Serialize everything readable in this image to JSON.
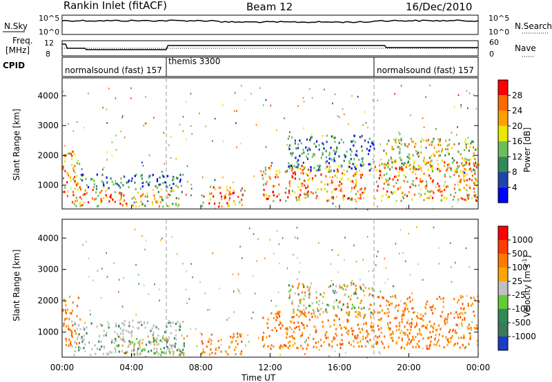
{
  "header": {
    "station": "Rankin Inlet (fitACF)",
    "beam": "Beam 12",
    "date": "16/Dec/2010"
  },
  "top_panels": {
    "nsky_label": "N.Sky",
    "nsky_ticks": [
      "10^5",
      "10^0"
    ],
    "nsearch_label": "N.Search",
    "nsearch_ticks": [
      "10^5",
      "10^0"
    ],
    "freq_label_1": "Freq.",
    "freq_label_2": "[MHz]",
    "freq_ticks": [
      "12",
      "8"
    ],
    "nave_label": "Nave",
    "nave_ticks": [
      "60",
      "0"
    ],
    "cpid_label": "CPID",
    "cpid_segments": [
      {
        "name": "normalsound (fast) 157",
        "start_h": 0,
        "end_h": 6
      },
      {
        "name": "themis 3300",
        "start_h": 6,
        "end_h": 18
      },
      {
        "name": "normalsound (fast) 157",
        "start_h": 18,
        "end_h": 24
      }
    ]
  },
  "colors": {
    "power_scale": [
      "#0000ff",
      "#1e46aa",
      "#2e8b57",
      "#6bbf59",
      "#e8e800",
      "#ffa000",
      "#ff6a00",
      "#ff0000"
    ],
    "velocity_scale": [
      "#1a3cc8",
      "#3a7a5a",
      "#2e8b57",
      "#66cc33",
      "#c0c0c0",
      "#ffa500",
      "#ff7800",
      "#ff3c00",
      "#ff0000"
    ]
  },
  "chart_data": [
    {
      "type": "heatmap",
      "name": "Power",
      "xlabel": "",
      "ylabel": "Slant Range [km]",
      "x_ticks": [
        "00:00",
        "04:00",
        "08:00",
        "12:00",
        "16:00",
        "20:00",
        "00:00"
      ],
      "xlim_hours": [
        0,
        24
      ],
      "ylim_km": [
        200,
        4600
      ],
      "y_ticks": [
        1000,
        2000,
        3000,
        4000
      ],
      "colorbar_label": "Power [dB]",
      "colorbar_ticks": [
        "28",
        "24",
        "20",
        "16",
        "12",
        "8",
        "4"
      ],
      "colorbar_range": [
        0,
        32
      ],
      "regions": [
        {
          "t0": 0,
          "t1": 1,
          "r0": 600,
          "r1": 2200,
          "level": "high"
        },
        {
          "t0": 0.5,
          "t1": 4,
          "r0": 300,
          "r1": 900,
          "level": "high"
        },
        {
          "t0": 1,
          "t1": 7,
          "r0": 900,
          "r1": 1400,
          "level": "low"
        },
        {
          "t0": 4,
          "t1": 7,
          "r0": 300,
          "r1": 900,
          "level": "mid"
        },
        {
          "t0": 8,
          "t1": 10.5,
          "r0": 300,
          "r1": 1000,
          "level": "high"
        },
        {
          "t0": 11.5,
          "t1": 17.5,
          "r0": 500,
          "r1": 1700,
          "level": "high"
        },
        {
          "t0": 13,
          "t1": 18,
          "r0": 1500,
          "r1": 2700,
          "level": "low"
        },
        {
          "t0": 18,
          "t1": 24,
          "r0": 500,
          "r1": 1800,
          "level": "high"
        },
        {
          "t0": 18.5,
          "t1": 24,
          "r0": 1500,
          "r1": 2600,
          "level": "mid"
        }
      ]
    },
    {
      "type": "heatmap",
      "name": "Velocity",
      "xlabel": "Time UT",
      "ylabel": "Slant Range [km]",
      "x_ticks": [
        "00:00",
        "04:00",
        "08:00",
        "12:00",
        "16:00",
        "20:00",
        "00:00"
      ],
      "xlim_hours": [
        0,
        24
      ],
      "ylim_km": [
        200,
        4600
      ],
      "y_ticks": [
        1000,
        2000,
        3000,
        4000
      ],
      "colorbar_label": "Velocity [m s^-1]",
      "colorbar_ticks": [
        "1000",
        "500",
        "100",
        "25",
        "-25",
        "-100",
        "-500",
        "-1000"
      ],
      "colorbar_range": [
        -1000,
        1000
      ],
      "regions": [
        {
          "t0": 0,
          "t1": 1,
          "r0": 600,
          "r1": 2200,
          "level": "away"
        },
        {
          "t0": 0.5,
          "t1": 7,
          "r0": 300,
          "r1": 1400,
          "level": "ground"
        },
        {
          "t0": 3,
          "t1": 7,
          "r0": 300,
          "r1": 900,
          "level": "toward"
        },
        {
          "t0": 8,
          "t1": 10.5,
          "r0": 300,
          "r1": 1000,
          "level": "away"
        },
        {
          "t0": 11.5,
          "t1": 18,
          "r0": 500,
          "r1": 1700,
          "level": "away"
        },
        {
          "t0": 13,
          "t1": 18,
          "r0": 1500,
          "r1": 2600,
          "level": "mixed"
        },
        {
          "t0": 18,
          "t1": 24,
          "r0": 500,
          "r1": 2200,
          "level": "away"
        }
      ]
    }
  ]
}
